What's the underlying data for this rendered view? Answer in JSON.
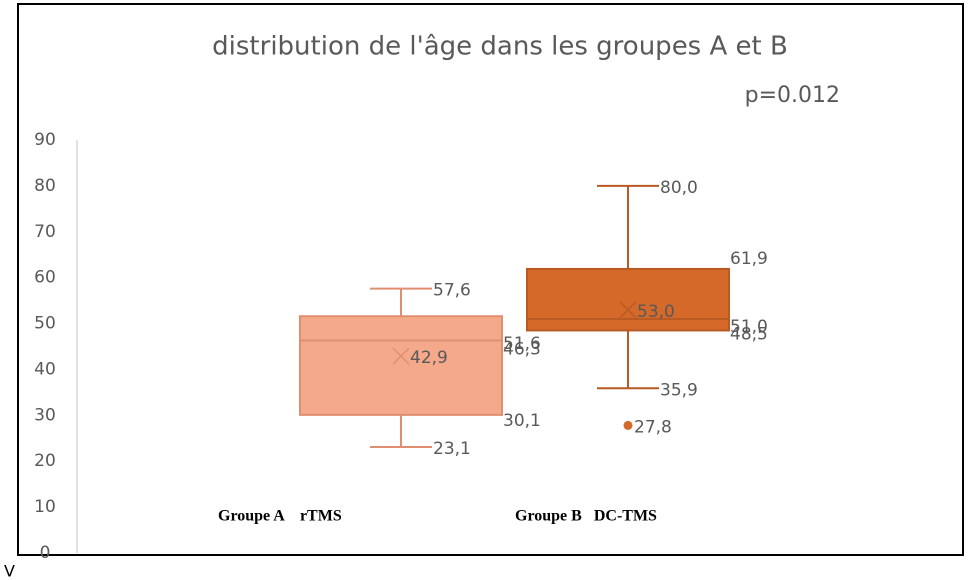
{
  "chart_data": {
    "type": "box",
    "title": "distribution de l'âge dans les groupes A et B",
    "annotation": "p=0.012",
    "corner_text": "V",
    "categories": [
      "Groupe A    rTMS",
      "Groupe B   DC-TMS"
    ],
    "series": [
      {
        "color": "#f4a98a",
        "stroke": "#e08e72",
        "min": 23.1,
        "q1": 30.1,
        "median": 46.3,
        "q3": 51.6,
        "max": 57.6,
        "mean": 42.9,
        "outliers": [],
        "value_labels": {
          "min": "23,1",
          "q1": "30,1",
          "median": "46,3",
          "q3": "51,6",
          "max": "57,6",
          "mean": "42,9",
          "outliers": []
        }
      },
      {
        "color": "#d4692a",
        "stroke": "#b85a22",
        "min": 35.9,
        "q1": 48.5,
        "median": 51.0,
        "q3": 61.9,
        "max": 80.0,
        "mean": 53.0,
        "outliers": [
          27.8
        ],
        "value_labels": {
          "min": "35,9",
          "q1": "48,5",
          "median": "51,0",
          "q3": "61,9",
          "max": "80,0",
          "mean": "53,0",
          "outliers": [
            "27,8"
          ]
        }
      }
    ],
    "ylim": [
      0,
      90
    ],
    "yticks": [
      0,
      10,
      20,
      30,
      40,
      50,
      60,
      70,
      80,
      90
    ],
    "grid": false
  }
}
